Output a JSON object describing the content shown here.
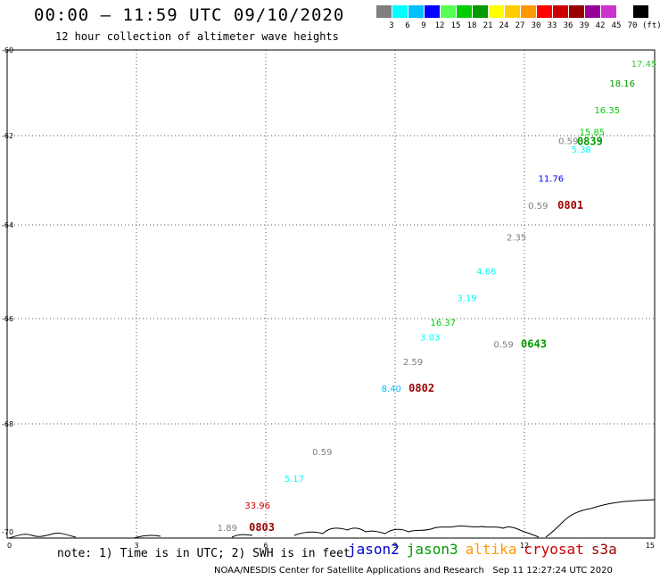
{
  "header": {
    "title": "00:00 – 11:59 UTC 09/10/2020",
    "subtitle": "12 hour collection of altimeter wave heights"
  },
  "legend": {
    "colors": [
      "#7f7f7f",
      "#00ffff",
      "#00bfff",
      "#0000ff",
      "#55ff55",
      "#00cc00",
      "#009900",
      "#ffff00",
      "#ffcc00",
      "#ff9900",
      "#ff0000",
      "#cc0000",
      "#990000",
      "#990099",
      "#cc33cc",
      "#ffffff",
      "#000000"
    ],
    "ticks": [
      "3",
      "6",
      "9",
      "12",
      "15",
      "18",
      "21",
      "24",
      "27",
      "30",
      "33",
      "36",
      "39",
      "42",
      "45",
      "70"
    ],
    "unit": "(ft)"
  },
  "map": {
    "lat_labels": [
      "-60",
      "-62",
      "-64",
      "-66",
      "-68",
      "-70"
    ],
    "lon_labels": [
      "0",
      "3",
      "6",
      "9",
      "12",
      "15"
    ],
    "lon_range": [
      0,
      15
    ],
    "lat_range": [
      -70,
      -60
    ],
    "observations": [
      {
        "text": "17.45",
        "color": "#33cc33",
        "lon": 14.75,
        "lat": -60.35
      },
      {
        "text": "18.16",
        "color": "#009900",
        "lon": 14.25,
        "lat": -60.75
      },
      {
        "text": "16.35",
        "color": "#00cc00",
        "lon": 13.9,
        "lat": -61.3
      },
      {
        "text": "15.85",
        "color": "#00cc00",
        "lon": 13.55,
        "lat": -61.75
      },
      {
        "text": "0.59",
        "color": "#7f7f7f",
        "lon": 13.0,
        "lat": -61.93
      },
      {
        "text": "5.38",
        "color": "#00ffff",
        "lon": 13.3,
        "lat": -62.1
      },
      {
        "text": "11.76",
        "color": "#0000ff",
        "lon": 12.6,
        "lat": -62.7
      },
      {
        "text": "0.59",
        "color": "#7f7f7f",
        "lon": 12.3,
        "lat": -63.25
      },
      {
        "text": "2.35",
        "color": "#7f7f7f",
        "lon": 11.8,
        "lat": -63.9
      },
      {
        "text": "4.66",
        "color": "#00ffff",
        "lon": 11.1,
        "lat": -64.6
      },
      {
        "text": "3.19",
        "color": "#00ffff",
        "lon": 10.65,
        "lat": -65.15
      },
      {
        "text": "16.37",
        "color": "#00cc00",
        "lon": 10.1,
        "lat": -65.65
      },
      {
        "text": "3.03",
        "color": "#00ffff",
        "lon": 9.8,
        "lat": -65.95
      },
      {
        "text": "0.59",
        "color": "#7f7f7f",
        "lon": 11.5,
        "lat": -66.1
      },
      {
        "text": "2.59",
        "color": "#7f7f7f",
        "lon": 9.4,
        "lat": -66.45
      },
      {
        "text": "8.40",
        "color": "#00bfff",
        "lon": 8.9,
        "lat": -67.0
      },
      {
        "text": "0.59",
        "color": "#7f7f7f",
        "lon": 7.3,
        "lat": -68.3
      },
      {
        "text": "5.17",
        "color": "#00ffff",
        "lon": 6.65,
        "lat": -68.85
      },
      {
        "text": "33.96",
        "color": "#cc0000",
        "lon": 5.8,
        "lat": -69.4
      },
      {
        "text": "1.89",
        "color": "#7f7f7f",
        "lon": 5.1,
        "lat": -69.85
      }
    ],
    "times": [
      {
        "text": "0839",
        "color": "#009900",
        "lon": 13.5,
        "lat": -61.95
      },
      {
        "text": "0801",
        "color": "#990000",
        "lon": 13.05,
        "lat": -63.25
      },
      {
        "text": "0643",
        "color": "#009900",
        "lon": 12.2,
        "lat": -66.1
      },
      {
        "text": "0802",
        "color": "#990000",
        "lon": 9.6,
        "lat": -67.0
      },
      {
        "text": "0803",
        "color": "#990000",
        "lon": 5.9,
        "lat": -69.85
      }
    ]
  },
  "note": "note: 1) Time is in UTC; 2) SWH is in feet",
  "satellites": [
    {
      "name": "jason2",
      "color": "#0000cc"
    },
    {
      "name": "jason3",
      "color": "#009900"
    },
    {
      "name": "altika",
      "color": "#ff9900"
    },
    {
      "name": "cryosat",
      "color": "#cc0000"
    },
    {
      "name": "s3a",
      "color": "#990000"
    }
  ],
  "footer": {
    "credit": "NOAA/NESDIS Center for Satellite Applications and Research",
    "timestamp": "Sep 11 12:27:24 UTC 2020"
  }
}
